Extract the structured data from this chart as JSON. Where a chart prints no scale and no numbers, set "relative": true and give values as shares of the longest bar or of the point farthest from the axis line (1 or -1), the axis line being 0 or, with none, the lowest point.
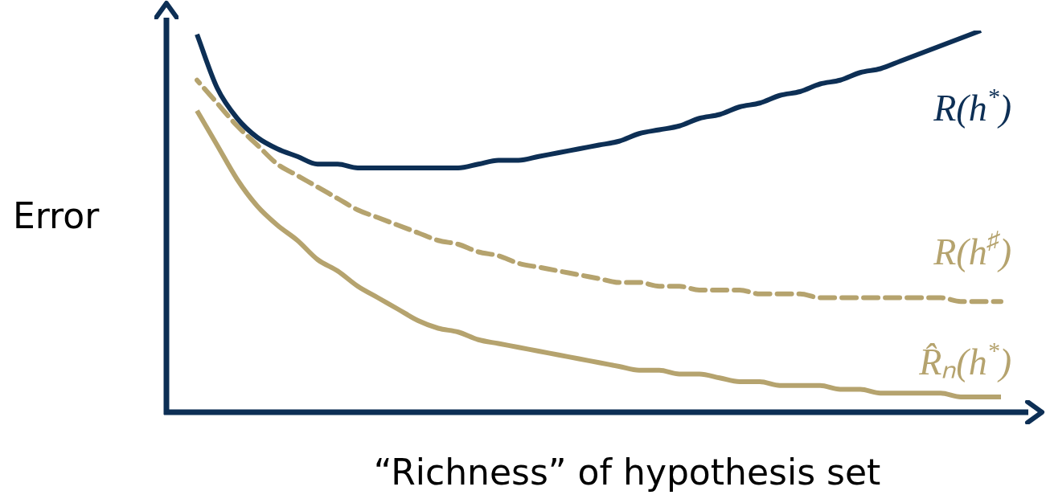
{
  "chart_data": {
    "type": "line",
    "relative": true,
    "xlabel": "“Richness” of hypothesis set",
    "ylabel": "Error",
    "marker": "none",
    "categories": [
      null,
      null,
      null,
      null,
      null,
      null,
      null,
      null,
      null,
      null,
      null,
      null,
      null,
      null,
      null,
      null,
      null,
      null,
      null,
      null,
      null,
      null,
      null,
      null,
      null,
      null,
      null,
      null,
      null,
      null,
      null,
      null,
      null,
      null,
      null,
      null,
      null,
      null,
      null,
      null,
      null
    ],
    "series": [
      {
        "name": "R(h$^{*}$)",
        "color": "#0d2f55",
        "line_style": "solid",
        "values": [
          0.99,
          0.85,
          0.77,
          0.72,
          0.69,
          0.67,
          0.65,
          0.65,
          0.64,
          0.64,
          0.64,
          0.64,
          0.64,
          0.64,
          0.65,
          0.66,
          0.66,
          0.67,
          0.68,
          0.69,
          0.7,
          0.71,
          0.73,
          0.74,
          0.75,
          0.77,
          0.78,
          0.8,
          0.81,
          0.83,
          0.84,
          0.86,
          0.87,
          0.89,
          0.9,
          0.92,
          0.94,
          0.96,
          0.98,
          1,
          null
        ]
      },
      {
        "name": "R(h$^{♯}$)",
        "color": "#b5a36e",
        "line_style": "dashed",
        "values": [
          0.87,
          0.81,
          0.75,
          0.7,
          0.65,
          0.62,
          0.59,
          0.56,
          0.53,
          0.51,
          0.49,
          0.47,
          0.45,
          0.44,
          0.42,
          0.41,
          0.39,
          0.38,
          0.37,
          0.36,
          0.35,
          0.34,
          0.34,
          0.33,
          0.33,
          0.32,
          0.32,
          0.32,
          0.31,
          0.31,
          0.31,
          0.3,
          0.3,
          0.3,
          0.3,
          0.3,
          0.3,
          0.3,
          0.29,
          0.29,
          0.29
        ]
      },
      {
        "name": "R̂ₙ(h$^{*}$)",
        "color": "#b5a36e",
        "line_style": "solid",
        "values": [
          0.79,
          0.7,
          0.61,
          0.54,
          0.49,
          0.45,
          0.4,
          0.37,
          0.33,
          0.3,
          0.27,
          0.24,
          0.22,
          0.21,
          0.19,
          0.18,
          0.17,
          0.16,
          0.15,
          0.14,
          0.13,
          0.12,
          0.11,
          0.11,
          0.1,
          0.1,
          0.09,
          0.08,
          0.08,
          0.07,
          0.07,
          0.07,
          0.06,
          0.06,
          0.05,
          0.05,
          0.05,
          0.05,
          0.04,
          0.04,
          0.04
        ]
      }
    ]
  }
}
